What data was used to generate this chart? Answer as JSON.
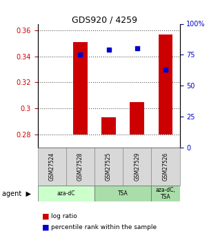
{
  "title": "GDS920 / 4259",
  "samples": [
    "GSM27524",
    "GSM27528",
    "GSM27525",
    "GSM27529",
    "GSM27526"
  ],
  "log_ratio": [
    0.28,
    0.351,
    0.293,
    0.305,
    0.357
  ],
  "percentile_rank": [
    null,
    75,
    79,
    80,
    63
  ],
  "ylim_left": [
    0.27,
    0.365
  ],
  "ylim_right": [
    0,
    100
  ],
  "yticks_left": [
    0.28,
    0.3,
    0.32,
    0.34,
    0.36
  ],
  "yticks_right": [
    0,
    25,
    50,
    75,
    100
  ],
  "ytick_labels_right": [
    "0",
    "25",
    "50",
    "75",
    "100%"
  ],
  "bar_color": "#cc0000",
  "dot_color": "#0000cc",
  "bar_bottom": 0.28,
  "agent_groups": [
    {
      "label": "aza-dC",
      "indices": [
        0,
        1
      ],
      "color": "#ccffcc"
    },
    {
      "label": "TSA",
      "indices": [
        2,
        3
      ],
      "color": "#99ee99"
    },
    {
      "label": "aza-dC,\nTSA",
      "indices": [
        4
      ],
      "color": "#99ee99"
    }
  ],
  "legend_items": [
    {
      "color": "#cc0000",
      "label": "log ratio"
    },
    {
      "color": "#0000cc",
      "label": "percentile rank within the sample"
    }
  ],
  "background_color": "#ffffff",
  "plot_bg": "#ffffff",
  "grid_color": "#333333",
  "tick_color_left": "#cc0000",
  "tick_color_right": "#0000cc"
}
